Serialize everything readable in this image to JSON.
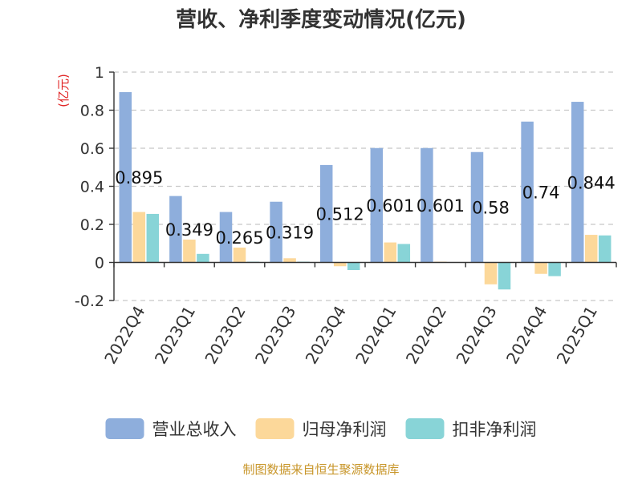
{
  "chart_data": {
    "type": "bar",
    "title": "营收、净利季度变动情况(亿元)",
    "ylabel": "(亿元)",
    "xlabel": "",
    "categories": [
      "2022Q4",
      "2023Q1",
      "2023Q2",
      "2023Q3",
      "2023Q4",
      "2024Q1",
      "2024Q2",
      "2024Q3",
      "2024Q4",
      "2025Q1"
    ],
    "ylim": [
      -0.2,
      1
    ],
    "yticks": [
      "1",
      "0.8",
      "0.6",
      "0.4",
      "0.2",
      "0",
      "-0.2"
    ],
    "ytick_values": [
      1,
      0.8,
      0.6,
      0.4,
      0.2,
      0,
      -0.2
    ],
    "grid": "horizontal-dashed",
    "legend_position": "bottom",
    "series": [
      {
        "name": "营业总收入",
        "color": "#8eaedc",
        "values": [
          0.895,
          0.349,
          0.265,
          0.319,
          0.512,
          0.601,
          0.601,
          0.58,
          0.74,
          0.844
        ],
        "labels": [
          "0.895",
          "0.349",
          "0.265",
          "0.319",
          "0.512",
          "0.601",
          "0.601",
          "0.58",
          "0.74",
          "0.844"
        ]
      },
      {
        "name": "归母净利润",
        "color": "#fcd89a",
        "values": [
          0.265,
          0.12,
          0.078,
          0.022,
          -0.02,
          0.105,
          0.004,
          -0.115,
          -0.06,
          0.145
        ]
      },
      {
        "name": "扣非净利润",
        "color": "#88d4d7",
        "values": [
          0.255,
          0.045,
          0.004,
          0.004,
          -0.04,
          0.097,
          0.002,
          -0.142,
          -0.072,
          0.142
        ]
      }
    ],
    "source": "制图数据来自恒生聚源数据库"
  }
}
